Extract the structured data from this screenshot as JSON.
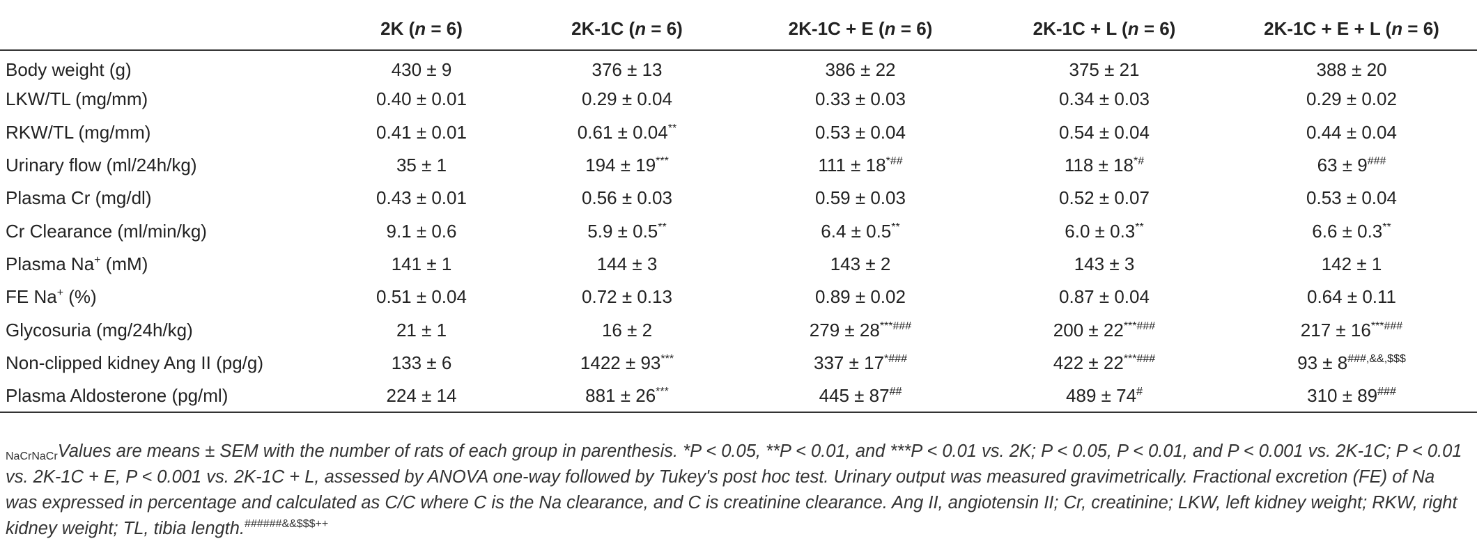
{
  "columns": [
    {
      "group": "2K",
      "n": "6"
    },
    {
      "group": "2K-1C",
      "n": "6"
    },
    {
      "group": "2K-1C + E",
      "n": "6"
    },
    {
      "group": "2K-1C + L",
      "n": "6"
    },
    {
      "group": "2K-1C + E + L",
      "n": "6"
    }
  ],
  "n_symbol": "n",
  "rows": [
    {
      "label": "Body weight (g)",
      "cells": [
        {
          "v": "430 ± 9",
          "s": ""
        },
        {
          "v": "376 ± 13",
          "s": ""
        },
        {
          "v": "386 ± 22",
          "s": ""
        },
        {
          "v": "375 ± 21",
          "s": ""
        },
        {
          "v": "388 ± 20",
          "s": ""
        }
      ]
    },
    {
      "label": "LKW/TL (mg/mm)",
      "cells": [
        {
          "v": "0.40 ± 0.01",
          "s": ""
        },
        {
          "v": "0.29 ± 0.04",
          "s": ""
        },
        {
          "v": "0.33 ± 0.03",
          "s": ""
        },
        {
          "v": "0.34 ± 0.03",
          "s": ""
        },
        {
          "v": "0.29 ± 0.02",
          "s": ""
        }
      ]
    },
    {
      "label": "RKW/TL (mg/mm)",
      "cells": [
        {
          "v": "0.41 ± 0.01",
          "s": ""
        },
        {
          "v": "0.61 ± 0.04",
          "s": "**"
        },
        {
          "v": "0.53 ± 0.04",
          "s": ""
        },
        {
          "v": "0.54 ± 0.04",
          "s": ""
        },
        {
          "v": "0.44 ± 0.04",
          "s": ""
        }
      ]
    },
    {
      "label": "Urinary flow (ml/24h/kg)",
      "cells": [
        {
          "v": "35 ± 1",
          "s": ""
        },
        {
          "v": "194 ± 19",
          "s": "***"
        },
        {
          "v": "111 ± 18",
          "s": "*##"
        },
        {
          "v": "118 ± 18",
          "s": "*#"
        },
        {
          "v": "63 ± 9",
          "s": "###"
        }
      ]
    },
    {
      "label": "Plasma Cr (mg/dl)",
      "cells": [
        {
          "v": "0.43 ± 0.01",
          "s": ""
        },
        {
          "v": "0.56 ± 0.03",
          "s": ""
        },
        {
          "v": "0.59 ± 0.03",
          "s": ""
        },
        {
          "v": "0.52 ± 0.07",
          "s": ""
        },
        {
          "v": "0.53 ± 0.04",
          "s": ""
        }
      ]
    },
    {
      "label": "Cr Clearance (ml/min/kg)",
      "cells": [
        {
          "v": "9.1 ± 0.6",
          "s": ""
        },
        {
          "v": "5.9 ± 0.5",
          "s": "**"
        },
        {
          "v": "6.4 ± 0.5",
          "s": "**"
        },
        {
          "v": "6.0 ± 0.3",
          "s": "**"
        },
        {
          "v": "6.6 ± 0.3",
          "s": "**"
        }
      ]
    },
    {
      "label": "Plasma Na",
      "label_sup": "+",
      "label_after": " (mM)",
      "cells": [
        {
          "v": "141 ± 1",
          "s": ""
        },
        {
          "v": "144 ± 3",
          "s": ""
        },
        {
          "v": "143 ± 2",
          "s": ""
        },
        {
          "v": "143 ± 3",
          "s": ""
        },
        {
          "v": "142 ± 1",
          "s": ""
        }
      ]
    },
    {
      "label": "FE Na",
      "label_sup": "+",
      "label_after": " (%)",
      "cells": [
        {
          "v": "0.51 ± 0.04",
          "s": ""
        },
        {
          "v": "0.72 ± 0.13",
          "s": ""
        },
        {
          "v": "0.89 ± 0.02",
          "s": ""
        },
        {
          "v": "0.87 ± 0.04",
          "s": ""
        },
        {
          "v": "0.64 ± 0.11",
          "s": ""
        }
      ]
    },
    {
      "label": "Glycosuria (mg/24h/kg)",
      "cells": [
        {
          "v": "21 ± 1",
          "s": ""
        },
        {
          "v": "16 ± 2",
          "s": ""
        },
        {
          "v": "279 ± 28",
          "s": "***###"
        },
        {
          "v": "200 ± 22",
          "s": "***###"
        },
        {
          "v": "217 ± 16",
          "s": "***###"
        }
      ]
    },
    {
      "label": "Non-clipped kidney Ang II (pg/g)",
      "cells": [
        {
          "v": "133 ± 6",
          "s": ""
        },
        {
          "v": "1422 ± 93",
          "s": "***"
        },
        {
          "v": "337 ± 17",
          "s": "*###"
        },
        {
          "v": "422 ± 22",
          "s": "***###"
        },
        {
          "v": "93 ± 8",
          "s": "###,&&,$$$"
        }
      ]
    },
    {
      "label": "Plasma Aldosterone (pg/ml)",
      "cells": [
        {
          "v": "224 ± 14",
          "s": ""
        },
        {
          "v": "881 ± 26",
          "s": "***"
        },
        {
          "v": "445 ± 87",
          "s": "##"
        },
        {
          "v": "489 ± 74",
          "s": "#"
        },
        {
          "v": "310 ± 89",
          "s": "###"
        }
      ]
    }
  ],
  "footnote": {
    "f01": "Values are means ± SEM with the number of rats of each group in parenthesis. *P < 0.05, **P < 0.01, and ***P < 0.01 vs. 2K; ",
    "s02": "#",
    "f03": "P < 0.05, ",
    "s04": "##",
    "f05": "P < 0.01, and ",
    "s06": "###",
    "f07": "P < 0.001 vs. 2K-1C; ",
    "s08": "&&",
    "f09": "P < 0.01 vs. 2K-1C + E, ",
    "s10": "$$$",
    "f11": "P < 0.001 vs. 2K-1C + L, assessed by ANOVA one-way followed by Tukey's post hoc test. Urinary output was measured gravimetrically. Fractional excretion (FE) of Na",
    "s12": "+",
    "f13": " was expressed in percentage and calculated as C",
    "b14": "Na",
    "f15": "/C",
    "b16": "Cr",
    "f17": " where C",
    "b18": "Na",
    "f19": " is the Na",
    "s20": "+",
    "f21": " clearance, and C",
    "b22": "Cr",
    "f23": " is creatinine clearance. Ang II, angiotensin II; Cr, creatinine; LKW, left kidney weight; RKW, right kidney weight; TL, tibia length."
  }
}
